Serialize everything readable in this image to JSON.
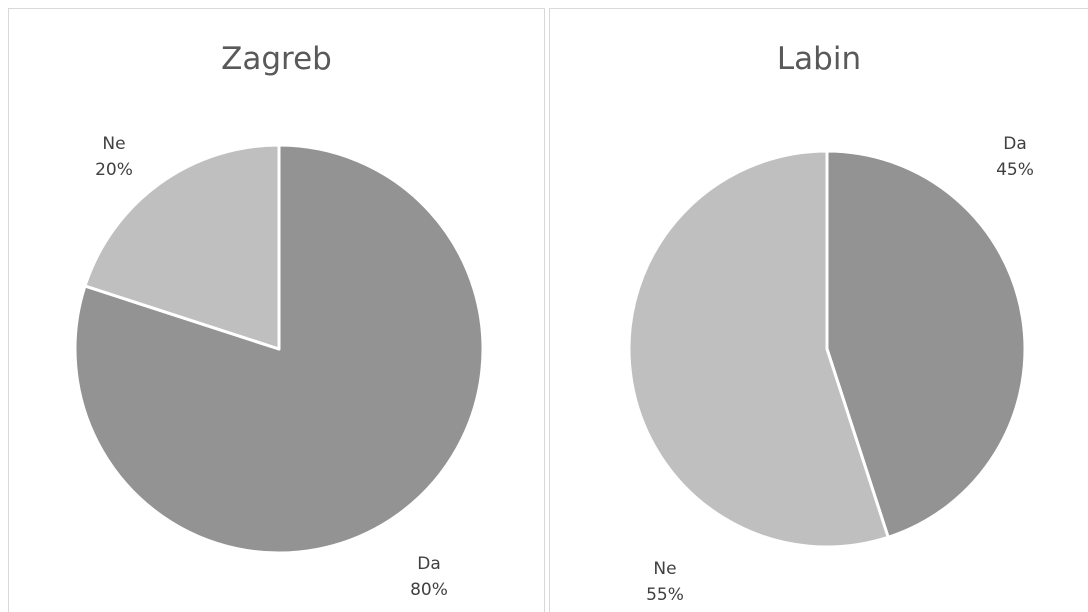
{
  "chart_data": [
    {
      "type": "pie",
      "title": "Zagreb",
      "slices": [
        {
          "label": "Da",
          "percent_label": "80%",
          "value": 80,
          "color": "#939393"
        },
        {
          "label": "Ne",
          "percent_label": "20%",
          "value": 20,
          "color": "#bfbfbf"
        }
      ]
    },
    {
      "type": "pie",
      "title": "Labin",
      "slices": [
        {
          "label": "Da",
          "percent_label": "45%",
          "value": 45,
          "color": "#939393"
        },
        {
          "label": "Ne",
          "percent_label": "55%",
          "value": 55,
          "color": "#bfbfbf"
        }
      ]
    }
  ]
}
